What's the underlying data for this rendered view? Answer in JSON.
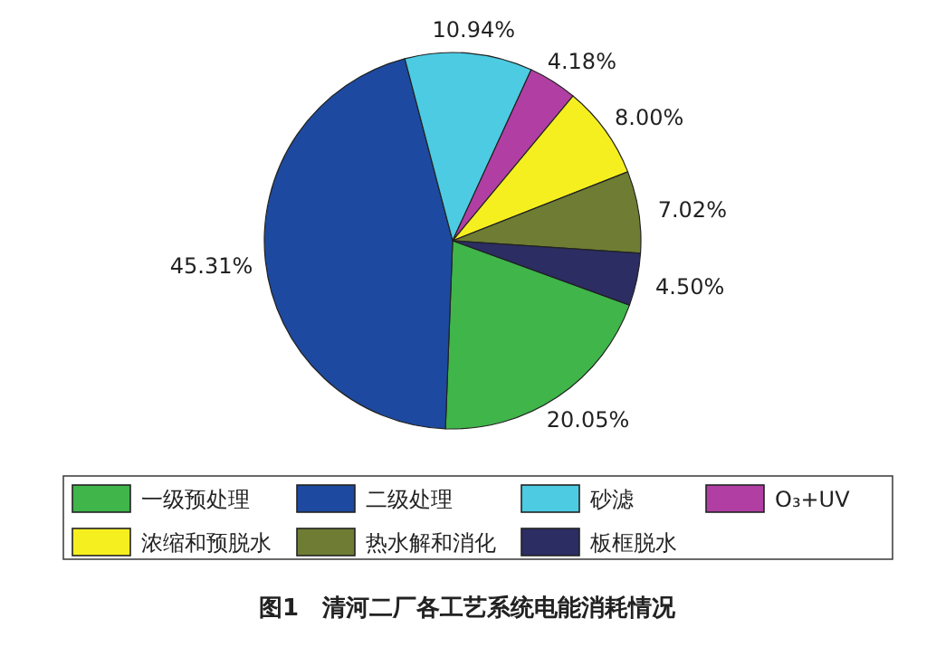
{
  "chart_data": {
    "type": "pie",
    "title": "图1　清河二厂各工艺系统电能消耗情况",
    "categories": [
      "一级预处理",
      "二级处理",
      "砂滤",
      "O₃+UV",
      "浓缩和预脱水",
      "热水解和消化",
      "板框脱水"
    ],
    "values": [
      20.05,
      45.31,
      10.94,
      4.18,
      8.0,
      7.02,
      4.5
    ],
    "value_labels": [
      "20.05%",
      "45.31%",
      "10.94%",
      "4.18%",
      "8.00%",
      "7.02%",
      "4.50%"
    ],
    "colors": [
      "#3fb54a",
      "#1d4aa0",
      "#4ccbe2",
      "#b13fa3",
      "#f6ef1f",
      "#6e7d33",
      "#2b2d63"
    ],
    "legend": "bottom"
  }
}
